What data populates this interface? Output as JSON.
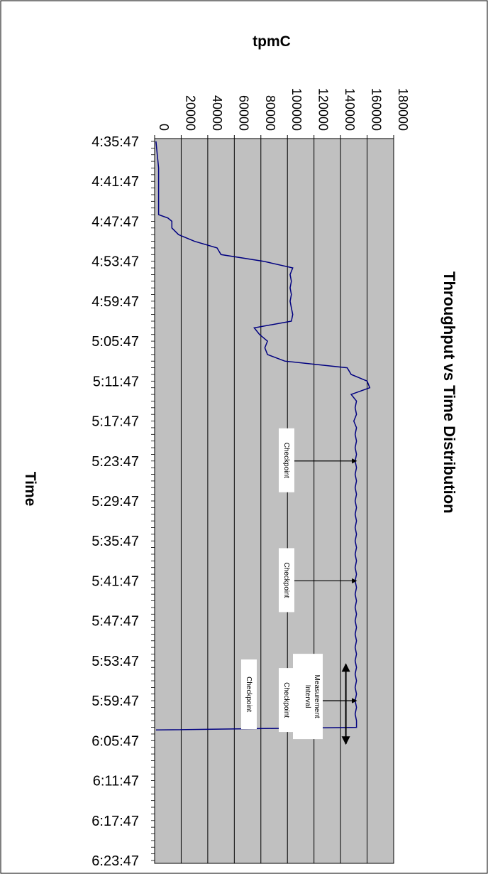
{
  "chart_data": {
    "type": "line",
    "title": "Throughput vs Time Distribution",
    "xlabel": "Time",
    "ylabel": "tpmC",
    "ylim": [
      0,
      180000
    ],
    "yticks": [
      "0",
      "20000",
      "40000",
      "60000",
      "80000",
      "100000",
      "120000",
      "140000",
      "160000",
      "180000"
    ],
    "xticks": [
      "4:35:47",
      "4:41:47",
      "4:47:47",
      "4:53:47",
      "4:59:47",
      "5:05:47",
      "5:11:47",
      "5:17:47",
      "5:23:47",
      "5:29:47",
      "5:35:47",
      "5:41:47",
      "5:47:47",
      "5:53:47",
      "5:59:47",
      "6:05:47",
      "6:11:47",
      "6:17:47",
      "6:23:47"
    ],
    "grid": true,
    "series": [
      {
        "color": "#000080",
        "x_minutes": [
          0,
          1,
          2,
          3,
          4,
          5,
          6,
          7,
          8,
          9,
          10,
          11,
          11.5,
          12,
          13,
          14,
          15,
          16,
          17,
          18,
          19,
          20,
          21,
          22,
          23,
          24,
          25,
          26,
          27,
          28,
          29,
          30,
          31,
          32,
          33,
          34,
          35,
          36,
          37,
          38,
          39,
          40,
          41,
          42,
          43,
          44,
          45,
          46,
          47,
          48,
          49,
          50,
          51,
          52,
          53,
          54,
          55,
          56,
          57,
          58,
          59,
          60,
          61,
          62,
          63,
          64,
          65,
          66,
          67,
          68,
          69,
          70,
          71,
          72,
          73,
          74,
          75,
          76,
          77,
          78,
          79,
          80,
          81,
          82,
          83,
          84,
          85,
          86,
          87,
          88,
          88.4
        ],
        "values": [
          1000,
          1500,
          2000,
          2500,
          3000,
          3000,
          3000,
          3000,
          3000,
          3000,
          3000,
          3000,
          10000,
          13000,
          13000,
          18000,
          30000,
          47000,
          50000,
          82000,
          104000,
          102000,
          103000,
          102000,
          103000,
          102000,
          103000,
          104000,
          103000,
          75000,
          79000,
          85000,
          83000,
          85000,
          98000,
          145000,
          148000,
          160000,
          162000,
          148000,
          152000,
          151000,
          152000,
          150000,
          152000,
          151000,
          152000,
          151000,
          152000,
          151000,
          152000,
          151000,
          152000,
          151000,
          152000,
          151000,
          152000,
          151000,
          152000,
          151000,
          152000,
          151000,
          152000,
          151000,
          152000,
          151000,
          152000,
          151000,
          152000,
          151000,
          152000,
          151000,
          152000,
          151000,
          152000,
          151000,
          152000,
          151000,
          152000,
          151000,
          152000,
          151000,
          152000,
          151000,
          152000,
          151000,
          152000,
          151000,
          152000,
          152000,
          1000
        ]
      }
    ],
    "annotations": [
      {
        "text": "Checkpoint",
        "at_minute": 48,
        "arrow_value": 152000
      },
      {
        "text": "Checkpoint",
        "at_minute": 66,
        "arrow_value": 152000
      },
      {
        "text": "Checkpoint",
        "at_minute": 84,
        "arrow_value": 152000
      },
      {
        "text": "Checkpoint",
        "at_minute": 84,
        "arrow_value": null
      },
      {
        "text": "Measurement Interval",
        "at_minute": 84,
        "arrow_value": 152000,
        "interval_minutes": [
          78.5,
          90.5
        ],
        "interval_value": 144000
      }
    ]
  }
}
